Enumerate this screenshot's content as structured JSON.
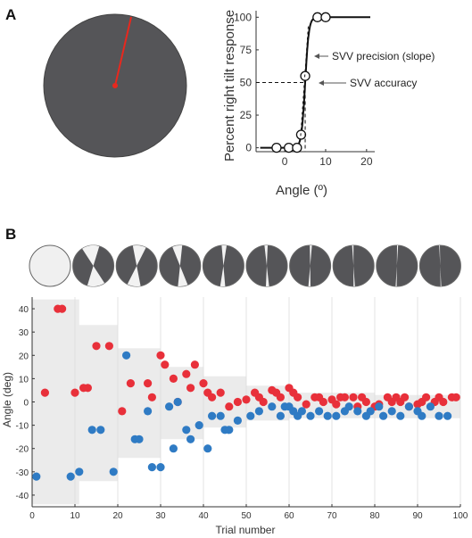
{
  "panels": {
    "a_label": "A",
    "b_label": "B"
  },
  "colors": {
    "disk": "#555558",
    "line": "#e8281e",
    "red_points": "#e8303a",
    "blue_points": "#2f7bc4",
    "band": "#ebebeb",
    "axis": "#333333"
  },
  "sigmoid": {
    "ylabel": "Percent right tilt response",
    "xlabel": "Angle (º)",
    "xticks": [
      "0",
      "10",
      "20"
    ],
    "yticks": [
      "0",
      "25",
      "50",
      "75",
      "100"
    ],
    "annotations": {
      "precision": "SVV precision (slope)",
      "accuracy": "SVV accuracy"
    }
  },
  "chart_data": [
    {
      "type": "line",
      "panel": "A",
      "xlabel": "Angle (º)",
      "ylabel": "Percent right tilt response",
      "xlim": [
        -7,
        22
      ],
      "ylim": [
        -3,
        105
      ],
      "x": [
        -2,
        1,
        3,
        4,
        5,
        8,
        10
      ],
      "y": [
        0,
        0,
        0,
        10,
        55,
        100,
        100
      ],
      "curve": {
        "midpoint": 5,
        "from": -6,
        "to": 21
      }
    },
    {
      "type": "scatter",
      "panel": "B",
      "xlabel": "Trial number",
      "ylabel": "Angle (deg)",
      "xlim": [
        0,
        100
      ],
      "ylim": [
        -45,
        45
      ],
      "xticks": [
        "0",
        "10",
        "20",
        "30",
        "40",
        "50",
        "60",
        "70",
        "80",
        "90",
        "100"
      ],
      "yticks": [
        "40",
        "30",
        "20",
        "10",
        "0",
        "-10",
        "-20",
        "-30",
        "-40"
      ],
      "grid": "vertical",
      "band": {
        "x": [
          0,
          11,
          11,
          20,
          20,
          30,
          30,
          40,
          40,
          50,
          50,
          60,
          60,
          70,
          70,
          80,
          80,
          90,
          90,
          100
        ],
        "upper": [
          44,
          44,
          33,
          33,
          23,
          23,
          15,
          15,
          11,
          11,
          7,
          7,
          4,
          4,
          4,
          4,
          3,
          3,
          3,
          3
        ],
        "lower": [
          -44,
          -44,
          -34,
          -34,
          -24,
          -24,
          -16,
          -16,
          -11,
          -11,
          -8,
          -8,
          -7,
          -7,
          -7,
          -7,
          -7,
          -7,
          -7,
          -7
        ]
      },
      "series": [
        {
          "color": "red",
          "x": [
            3,
            6,
            7,
            10,
            12,
            13,
            15,
            18,
            21,
            23,
            27,
            28,
            30,
            31,
            33,
            34,
            36,
            37,
            38,
            40,
            41,
            42,
            44,
            46,
            48,
            50,
            52,
            53,
            54,
            56,
            57,
            58,
            60,
            61,
            62,
            64,
            66,
            67,
            68,
            70,
            71,
            72,
            73,
            75,
            76,
            77,
            78,
            80,
            81,
            83,
            84,
            85,
            86,
            87,
            88,
            90,
            91,
            92,
            94,
            95,
            96,
            98,
            99
          ],
          "y": [
            4,
            40,
            40,
            4,
            6,
            6,
            24,
            24,
            -4,
            8,
            8,
            2,
            20,
            16,
            10,
            0,
            12,
            6,
            16,
            8,
            4,
            2,
            4,
            -2,
            0,
            1,
            4,
            2,
            0,
            5,
            4,
            2,
            6,
            4,
            2,
            -1,
            2,
            2,
            0,
            1,
            -1,
            2,
            2,
            2,
            -2,
            2,
            0,
            -2,
            -1,
            2,
            0,
            2,
            0,
            2,
            -2,
            -1,
            0,
            2,
            0,
            2,
            0,
            2,
            2
          ]
        },
        {
          "color": "blue",
          "x": [
            1,
            9,
            11,
            14,
            16,
            19,
            22,
            24,
            25,
            27,
            28,
            30,
            32,
            33,
            34,
            36,
            37,
            39,
            41,
            42,
            44,
            45,
            46,
            48,
            51,
            53,
            56,
            58,
            59,
            60,
            61,
            62,
            63,
            65,
            67,
            69,
            71,
            73,
            74,
            76,
            78,
            79,
            81,
            82,
            84,
            86,
            88,
            90,
            91,
            93,
            95,
            97
          ],
          "y": [
            -32,
            -32,
            -30,
            -12,
            -12,
            -30,
            20,
            -16,
            -16,
            -4,
            -28,
            -28,
            -2,
            -20,
            0,
            -12,
            -16,
            -10,
            -20,
            -6,
            -6,
            -12,
            -12,
            -8,
            -6,
            -4,
            -2,
            -6,
            -2,
            -2,
            -4,
            -6,
            -4,
            -6,
            -4,
            -6,
            -6,
            -4,
            -2,
            -4,
            -6,
            -4,
            -2,
            -6,
            -4,
            -6,
            -2,
            -4,
            -6,
            -2,
            -6,
            -6
          ]
        }
      ]
    }
  ]
}
